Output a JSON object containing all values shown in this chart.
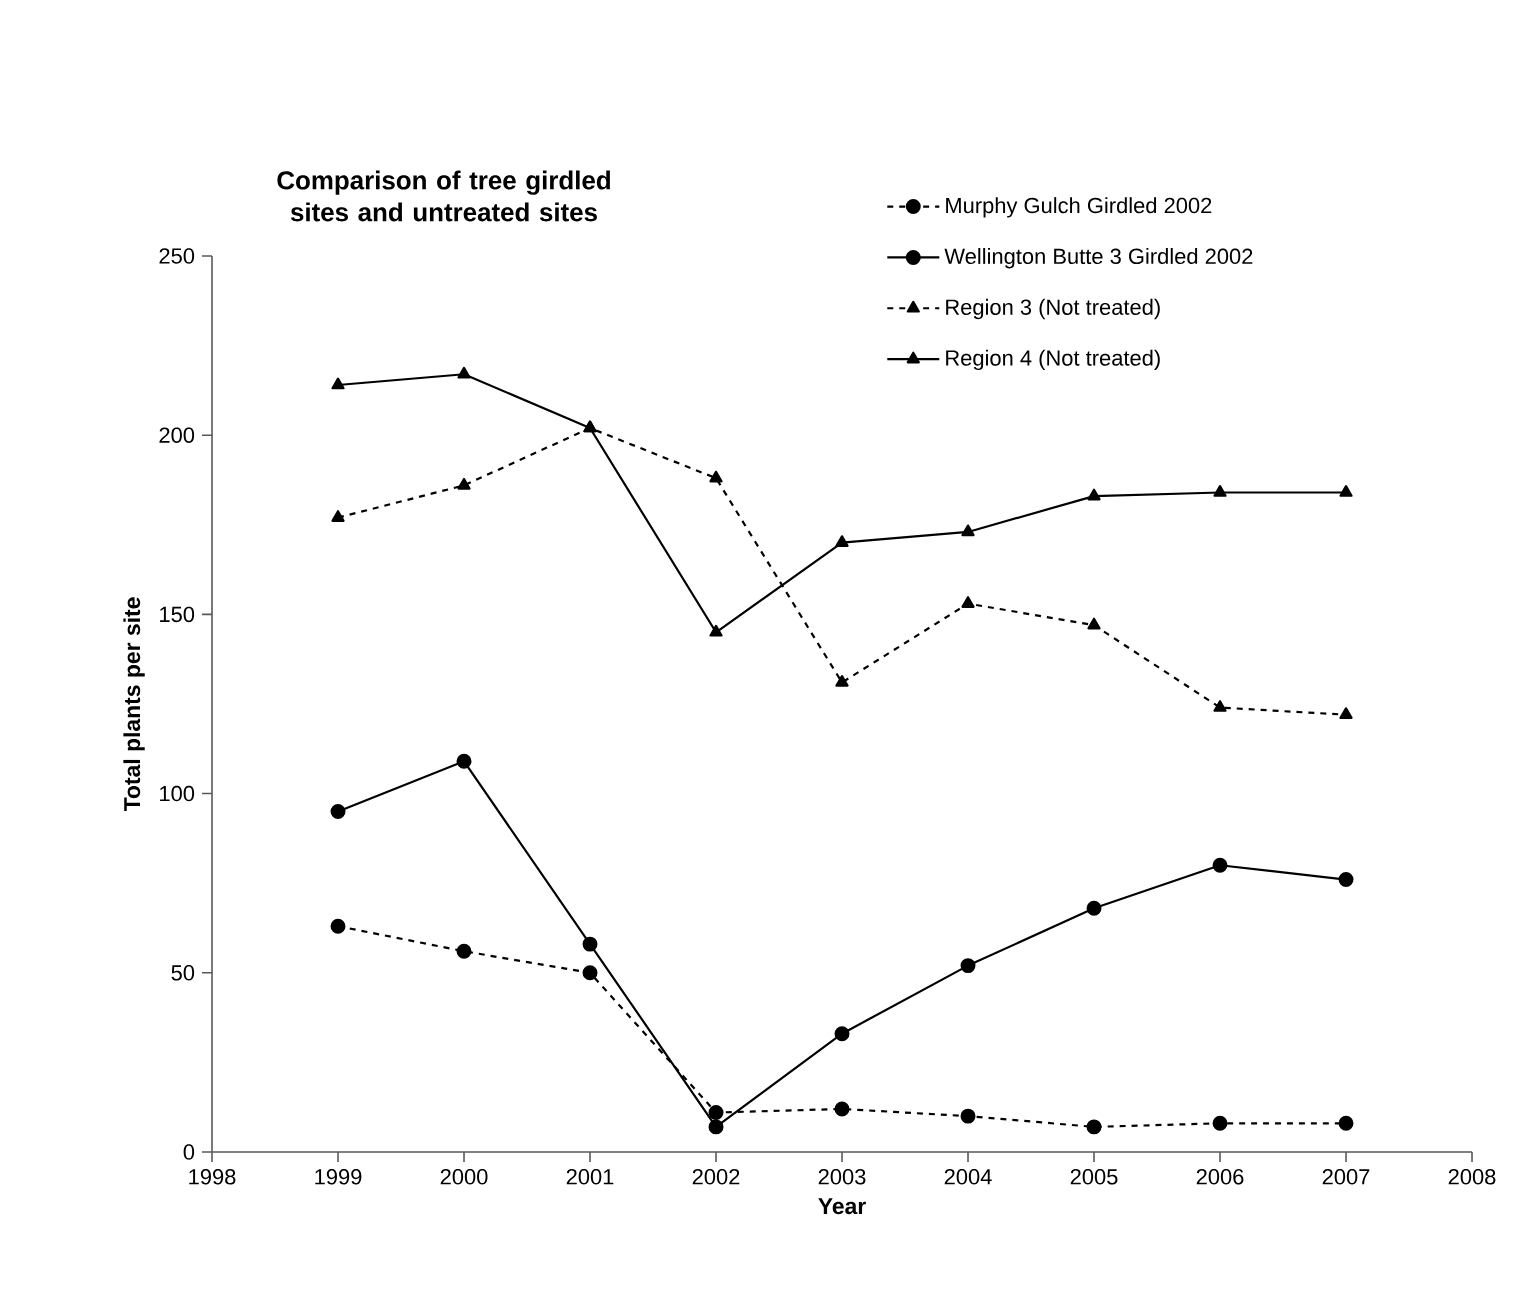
{
  "chart_data": {
    "type": "line",
    "title": "Comparison of tree girdled sites and untreated sites",
    "xlabel": "Year",
    "ylabel": "Total plants per site",
    "x": [
      1999,
      2000,
      2001,
      2002,
      2003,
      2004,
      2005,
      2006,
      2007
    ],
    "series": [
      {
        "name": "Murphy Gulch Girdled 2002",
        "color": "#000000",
        "marker": "circle",
        "line_style": "dashed",
        "values": [
          63,
          56,
          50,
          11,
          12,
          10,
          7,
          8,
          8
        ]
      },
      {
        "name": "Wellington Butte 3 Girdled 2002",
        "color": "#000000",
        "marker": "circle",
        "line_style": "solid",
        "values": [
          95,
          109,
          58,
          7,
          33,
          52,
          68,
          80,
          76
        ]
      },
      {
        "name": "Region 3 (Not treated)",
        "color": "#000000",
        "marker": "triangle",
        "line_style": "dashed",
        "values": [
          177,
          186,
          202,
          188,
          131,
          153,
          147,
          124,
          122
        ]
      },
      {
        "name": "Region 4 (Not treated)",
        "color": "#000000",
        "marker": "triangle",
        "line_style": "solid",
        "values": [
          214,
          217,
          202,
          145,
          170,
          173,
          183,
          184,
          184
        ]
      }
    ],
    "xlim": [
      1998,
      2008
    ],
    "xticks": [
      1998,
      1999,
      2000,
      2001,
      2002,
      2003,
      2004,
      2005,
      2006,
      2007,
      2008
    ],
    "ylim": [
      0,
      250
    ],
    "yticks": [
      0,
      50,
      100,
      150,
      200,
      250
    ],
    "grid": false,
    "legend": "top right"
  }
}
